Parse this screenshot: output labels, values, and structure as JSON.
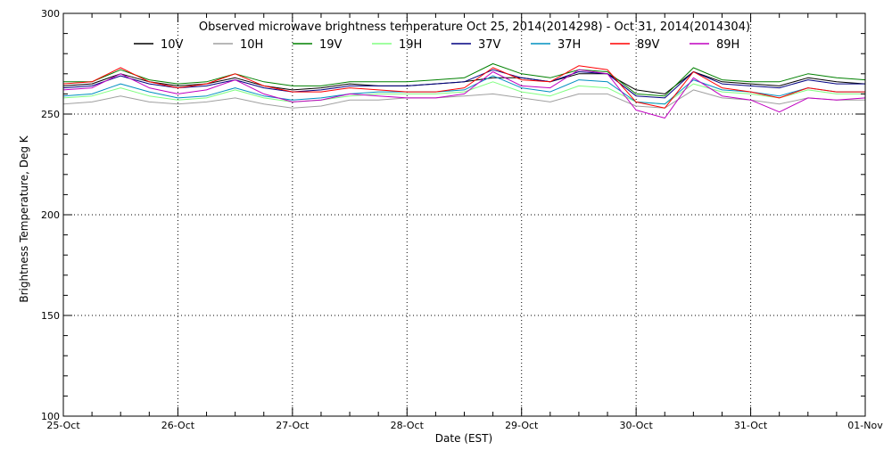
{
  "chart_data": {
    "type": "line",
    "title": "Observed microwave brightness temperature Oct 25, 2014(2014298) - Oct 31, 2014(2014304)",
    "xlabel": "Date (EST)",
    "ylabel": "Brightness Temperature, Deg K",
    "xlim": [
      "2014-10-25",
      "2014-11-01"
    ],
    "ylim": [
      100,
      300
    ],
    "x_ticks": [
      "25-Oct",
      "26-Oct",
      "27-Oct",
      "28-Oct",
      "29-Oct",
      "30-Oct",
      "31-Oct",
      "01-Nov"
    ],
    "y_ticks": [
      100,
      150,
      200,
      250,
      300
    ],
    "grid": "dotted at major ticks",
    "legend": "top, single row",
    "x": [
      "2014-10-25T00:00",
      "2014-10-25T06:00",
      "2014-10-25T12:00",
      "2014-10-25T18:00",
      "2014-10-26T00:00",
      "2014-10-26T06:00",
      "2014-10-26T12:00",
      "2014-10-26T18:00",
      "2014-10-27T00:00",
      "2014-10-27T06:00",
      "2014-10-27T12:00",
      "2014-10-27T18:00",
      "2014-10-28T00:00",
      "2014-10-28T06:00",
      "2014-10-28T12:00",
      "2014-10-28T18:00",
      "2014-10-29T00:00",
      "2014-10-29T06:00",
      "2014-10-29T12:00",
      "2014-10-29T18:00",
      "2014-10-30T00:00",
      "2014-10-30T06:00",
      "2014-10-30T12:00",
      "2014-10-30T18:00",
      "2014-10-31T00:00",
      "2014-10-31T06:00",
      "2014-10-31T12:00",
      "2014-10-31T18:00",
      "2014-11-01T00:00"
    ],
    "series": [
      {
        "name": "10V",
        "color": "#000000",
        "values": [
          264,
          265,
          270,
          266,
          264,
          265,
          268,
          264,
          262,
          263,
          265,
          264,
          264,
          265,
          266,
          268,
          268,
          266,
          270,
          270,
          262,
          260,
          271,
          266,
          265,
          264,
          268,
          266,
          265
        ]
      },
      {
        "name": "10H",
        "color": "#a0a0a0",
        "values": [
          255,
          256,
          259,
          256,
          255,
          256,
          258,
          255,
          253,
          254,
          257,
          257,
          258,
          258,
          259,
          260,
          258,
          256,
          260,
          260,
          254,
          253,
          262,
          258,
          257,
          255,
          258,
          257,
          257
        ]
      },
      {
        "name": "19V",
        "color": "#008000",
        "values": [
          266,
          266,
          272,
          267,
          265,
          266,
          270,
          266,
          264,
          264,
          266,
          266,
          266,
          267,
          268,
          275,
          270,
          268,
          272,
          271,
          260,
          259,
          273,
          267,
          266,
          266,
          270,
          268,
          267
        ]
      },
      {
        "name": "19H",
        "color": "#80ff80",
        "values": [
          258,
          259,
          263,
          259,
          257,
          258,
          262,
          258,
          256,
          257,
          259,
          260,
          260,
          260,
          261,
          266,
          261,
          259,
          264,
          263,
          256,
          255,
          265,
          261,
          260,
          258,
          262,
          260,
          260
        ]
      },
      {
        "name": "37V",
        "color": "#000080",
        "values": [
          263,
          264,
          269,
          265,
          263,
          264,
          267,
          263,
          261,
          262,
          264,
          264,
          264,
          265,
          266,
          272,
          268,
          266,
          271,
          270,
          259,
          258,
          271,
          265,
          264,
          263,
          267,
          265,
          265
        ]
      },
      {
        "name": "37H",
        "color": "#0090c0",
        "values": [
          259,
          260,
          265,
          261,
          258,
          259,
          263,
          259,
          257,
          258,
          260,
          261,
          261,
          261,
          262,
          269,
          263,
          261,
          267,
          266,
          256,
          255,
          267,
          262,
          261,
          259,
          263,
          261,
          261
        ]
      },
      {
        "name": "89V",
        "color": "#ff0000",
        "values": [
          265,
          266,
          273,
          266,
          263,
          265,
          270,
          264,
          261,
          261,
          263,
          262,
          261,
          261,
          263,
          273,
          267,
          266,
          274,
          272,
          256,
          253,
          271,
          263,
          261,
          258,
          263,
          261,
          261
        ]
      },
      {
        "name": "89H",
        "color": "#c000c0",
        "values": [
          262,
          263,
          270,
          263,
          260,
          262,
          267,
          260,
          256,
          257,
          260,
          259,
          258,
          258,
          260,
          271,
          264,
          263,
          272,
          270,
          252,
          248,
          268,
          259,
          257,
          251,
          258,
          257,
          258
        ]
      }
    ]
  }
}
